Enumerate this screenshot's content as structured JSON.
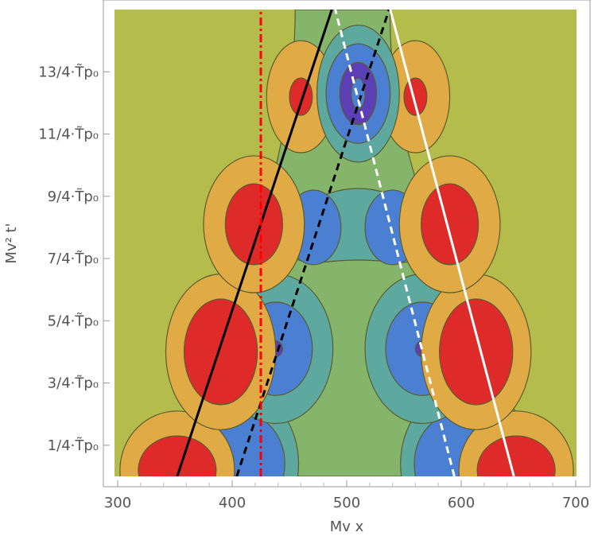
{
  "chart_data": {
    "type": "contour",
    "xlabel": "Mv x",
    "ylabel": "Mv² t'",
    "xlim": [
      300,
      700
    ],
    "ylim": [
      0,
      15
    ],
    "x_ticks": [
      {
        "value": 300,
        "label": "300"
      },
      {
        "value": 400,
        "label": "400"
      },
      {
        "value": 500,
        "label": "500"
      },
      {
        "value": 600,
        "label": "600"
      },
      {
        "value": 700,
        "label": "700"
      }
    ],
    "y_ticks": [
      {
        "value": 1,
        "label": "1/4·T̃p₀"
      },
      {
        "value": 3,
        "label": "3/4·T̃p₀"
      },
      {
        "value": 5,
        "label": "5/4·T̃p₀"
      },
      {
        "value": 7,
        "label": "7/4·T̃p₀"
      },
      {
        "value": 9,
        "label": "9/4·T̃p₀"
      },
      {
        "value": 11,
        "label": "11/4·T̃p₀"
      },
      {
        "value": 13,
        "label": "13/4·T̃p₀"
      }
    ],
    "colors": {
      "background": "#b4bc4b",
      "green": "#85b56a",
      "teal": "#5da89f",
      "blue": "#4b7fd2",
      "purple": "#5c3fb4",
      "orange": "#e0ab44",
      "red": "#df2a2a",
      "contour_line": "#5c5c30"
    },
    "blobs": [
      {
        "kind": "neg",
        "x": 410,
        "y": 0.4,
        "levels": [
          [
            48,
            2.3,
            "teal"
          ],
          [
            36,
            1.6,
            "blue"
          ]
        ]
      },
      {
        "kind": "neg",
        "x": 595,
        "y": 0.4,
        "levels": [
          [
            48,
            2.3,
            "teal"
          ],
          [
            36,
            1.6,
            "blue"
          ]
        ]
      },
      {
        "kind": "pos",
        "x": 352,
        "y": 0.2,
        "levels": [
          [
            50,
            1.9,
            "orange"
          ],
          [
            34,
            1.1,
            "red"
          ]
        ]
      },
      {
        "kind": "pos",
        "x": 648,
        "y": 0.2,
        "levels": [
          [
            50,
            1.9,
            "orange"
          ],
          [
            34,
            1.1,
            "red"
          ]
        ]
      },
      {
        "kind": "neg",
        "x": 438,
        "y": 4.1,
        "levels": [
          [
            50,
            2.4,
            "teal"
          ],
          [
            32,
            1.5,
            "blue"
          ],
          [
            6,
            0.25,
            "purple"
          ]
        ]
      },
      {
        "kind": "neg",
        "x": 566,
        "y": 4.1,
        "levels": [
          [
            50,
            2.4,
            "teal"
          ],
          [
            32,
            1.5,
            "blue"
          ],
          [
            6,
            0.25,
            "purple"
          ]
        ]
      },
      {
        "kind": "pos",
        "x": 390,
        "y": 4.0,
        "levels": [
          [
            48,
            2.5,
            "orange"
          ],
          [
            32,
            1.7,
            "red"
          ]
        ]
      },
      {
        "kind": "pos",
        "x": 613,
        "y": 4.0,
        "levels": [
          [
            48,
            2.5,
            "orange"
          ],
          [
            32,
            1.7,
            "red"
          ]
        ]
      },
      {
        "kind": "pos",
        "x": 419,
        "y": 8.1,
        "levels": [
          [
            44,
            2.2,
            "orange"
          ],
          [
            25,
            1.3,
            "red"
          ]
        ]
      },
      {
        "kind": "pos",
        "x": 590,
        "y": 8.1,
        "levels": [
          [
            44,
            2.2,
            "orange"
          ],
          [
            25,
            1.3,
            "red"
          ]
        ]
      },
      {
        "kind": "pos",
        "x": 460,
        "y": 12.2,
        "levels": [
          [
            30,
            1.8,
            "orange"
          ],
          [
            10,
            0.6,
            "red"
          ]
        ]
      },
      {
        "kind": "pos",
        "x": 560,
        "y": 12.2,
        "levels": [
          [
            30,
            1.8,
            "orange"
          ],
          [
            10,
            0.6,
            "red"
          ]
        ]
      },
      {
        "kind": "neg",
        "x": 510,
        "y": 12.3,
        "levels": [
          [
            36,
            2.2,
            "teal"
          ],
          [
            28,
            1.6,
            "blue"
          ],
          [
            16,
            1.0,
            "purple"
          ],
          [
            6,
            0.5,
            "blue"
          ]
        ]
      }
    ],
    "center_region": {
      "outer_teal": [
        [
          440,
          7.4
        ],
        [
          460,
          8.8
        ],
        [
          510,
          9.4
        ],
        [
          560,
          8.8
        ],
        [
          580,
          7.4
        ],
        [
          560,
          6.8
        ],
        [
          510,
          7.0
        ],
        [
          460,
          6.8
        ]
      ],
      "inner_left": {
        "x": 471,
        "y": 8.0,
        "rx": 24,
        "ry": 1.2
      },
      "inner_right": {
        "x": 540,
        "y": 8.0,
        "rx": 24,
        "ry": 1.2
      }
    },
    "lines": [
      {
        "name": "",
        "style": "solid",
        "color": "#000000",
        "points": [
          [
            352,
            0
          ],
          [
            487,
            15
          ]
        ]
      },
      {
        "name": "",
        "style": "dashed",
        "color": "#000000",
        "points": [
          [
            404,
            0
          ],
          [
            537,
            15
          ]
        ]
      },
      {
        "name": "",
        "style": "dashed",
        "color": "#ffffff",
        "points": [
          [
            594,
            0
          ],
          [
            490,
            15
          ]
        ]
      },
      {
        "name": "",
        "style": "solid",
        "color": "#ffffff",
        "points": [
          [
            646,
            0
          ],
          [
            538,
            15
          ]
        ]
      },
      {
        "name": "",
        "style": "dashdot",
        "color": "#ff0000",
        "points": [
          [
            425,
            0
          ],
          [
            425,
            15
          ]
        ]
      }
    ]
  }
}
